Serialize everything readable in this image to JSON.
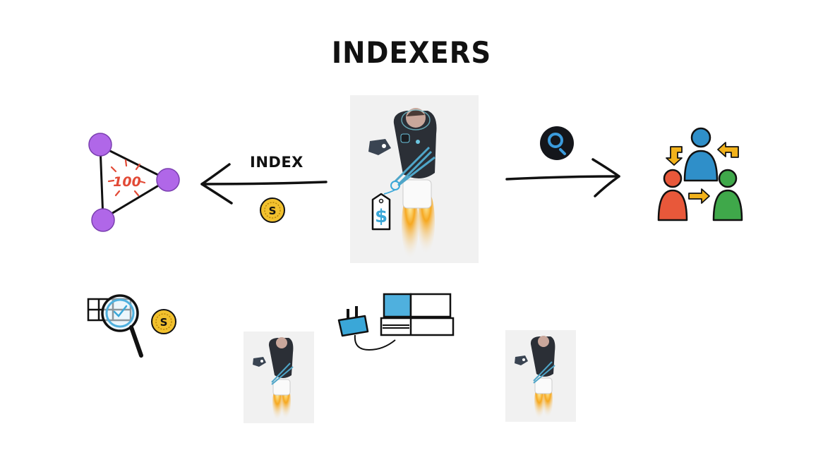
{
  "title": "INDEXERS",
  "arrow_label": "INDEX",
  "badge_number": "100",
  "tag_symbol": "$",
  "coin_symbol": "S",
  "icons": {
    "network": "network-triangle-icon",
    "coin": "coin-icon",
    "graph_logo": "the-graph-logo-icon",
    "users": "user-exchange-icon",
    "search": "magnifier-table-icon",
    "plug": "power-plug-icon",
    "console": "game-console-icon",
    "robot": "jetpack-astronaut"
  },
  "colors": {
    "node": "#b067e8",
    "coin": "#f2c12e",
    "tag": "#3aa7d8",
    "user_blue": "#2f8fc9",
    "user_red": "#e8583a",
    "user_green": "#3fa84a",
    "arrow_yellow": "#f2b21b",
    "console_blue": "#4fb0de"
  }
}
